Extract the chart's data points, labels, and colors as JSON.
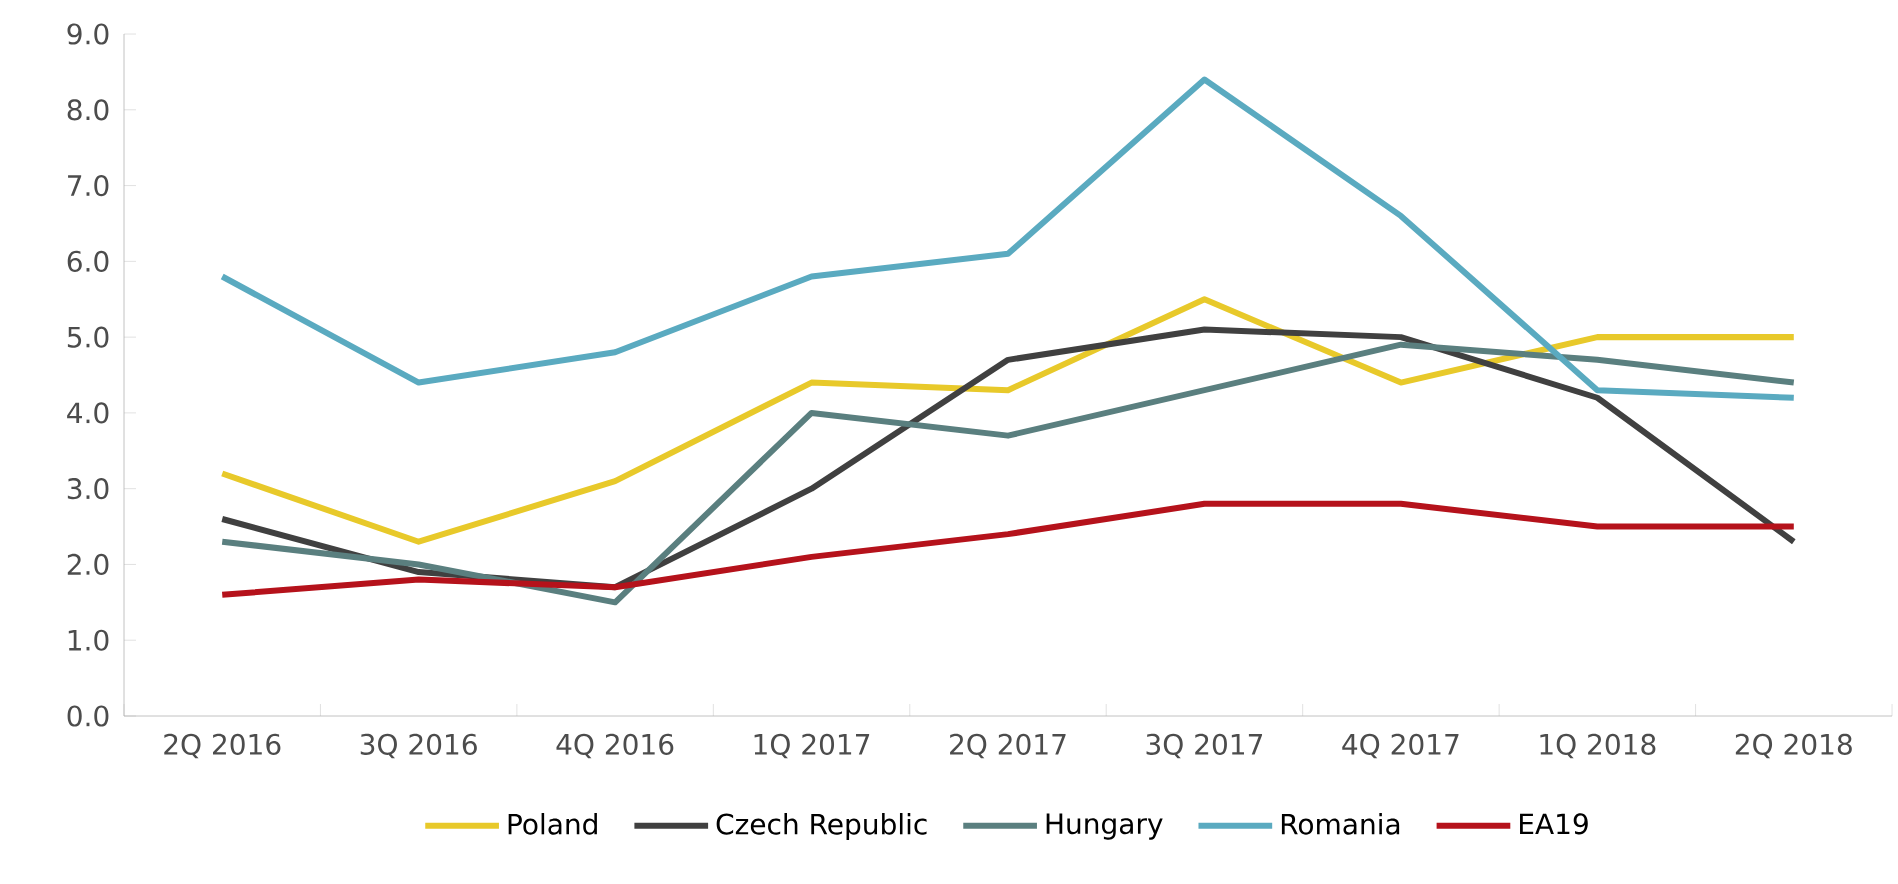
{
  "chart_data": {
    "type": "line",
    "categories": [
      "2Q 2016",
      "3Q 2016",
      "4Q 2016",
      "1Q 2017",
      "2Q 2017",
      "3Q 2017",
      "4Q 2017",
      "1Q 2018",
      "2Q 2018"
    ],
    "series": [
      {
        "name": "Poland",
        "color": "#e8c92a",
        "values": [
          3.2,
          2.3,
          3.1,
          4.4,
          4.3,
          5.5,
          4.4,
          5.0,
          5.0
        ]
      },
      {
        "name": "Czech Republic",
        "color": "#404040",
        "values": [
          2.6,
          1.9,
          1.7,
          3.0,
          4.7,
          5.1,
          5.0,
          4.2,
          2.3
        ]
      },
      {
        "name": "Hungary",
        "color": "#5a7f7f",
        "values": [
          2.3,
          2.0,
          1.5,
          4.0,
          3.7,
          4.3,
          4.9,
          4.7,
          4.4
        ]
      },
      {
        "name": "Romania",
        "color": "#5aaac0",
        "values": [
          5.8,
          4.4,
          4.8,
          5.8,
          6.1,
          8.4,
          6.6,
          4.3,
          4.2
        ]
      },
      {
        "name": "EA19",
        "color": "#b5121b",
        "values": [
          1.6,
          1.8,
          1.7,
          2.1,
          2.4,
          2.8,
          2.8,
          2.5,
          2.5
        ]
      }
    ],
    "ylim": [
      0,
      9
    ],
    "yticks": [
      {
        "value": 0,
        "label": "0.0"
      },
      {
        "value": 1,
        "label": "1.0"
      },
      {
        "value": 2,
        "label": "2.0"
      },
      {
        "value": 3,
        "label": "3.0"
      },
      {
        "value": 4,
        "label": "4.0"
      },
      {
        "value": 5,
        "label": "5.0"
      },
      {
        "value": 6,
        "label": "6.0"
      },
      {
        "value": 7,
        "label": "7.0"
      },
      {
        "value": 8,
        "label": "8.0"
      },
      {
        "value": 9,
        "label": "9.0"
      }
    ],
    "grid": false,
    "legend": "bottom",
    "marker": "none",
    "line_style": "solid"
  }
}
